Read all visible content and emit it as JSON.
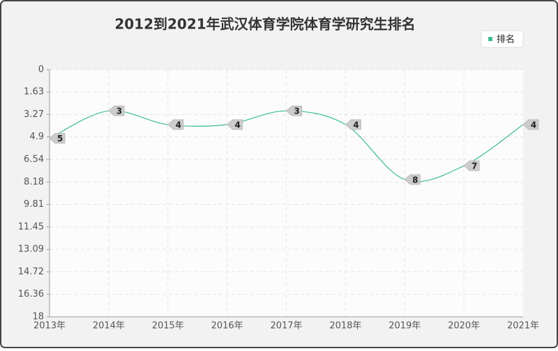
{
  "chart_data": {
    "type": "line",
    "title": "2012到2021年武汉体育学院体育学研究生排名",
    "categories": [
      "2013年",
      "2014年",
      "2015年",
      "2016年",
      "2017年",
      "2018年",
      "2019年",
      "2020年",
      "2021年"
    ],
    "series": [
      {
        "name": "排名",
        "color": "#3dbb96",
        "values": [
          5,
          3,
          4,
          4,
          3,
          4,
          8,
          7,
          4
        ]
      }
    ],
    "ylim": [
      0,
      18
    ],
    "y_inverted": true,
    "yticks": [
      0,
      1.63,
      3.27,
      4.9,
      6.54,
      8.18,
      9.81,
      11.45,
      13.09,
      14.72,
      16.36,
      18
    ],
    "grid": true,
    "legend": "top-right"
  }
}
